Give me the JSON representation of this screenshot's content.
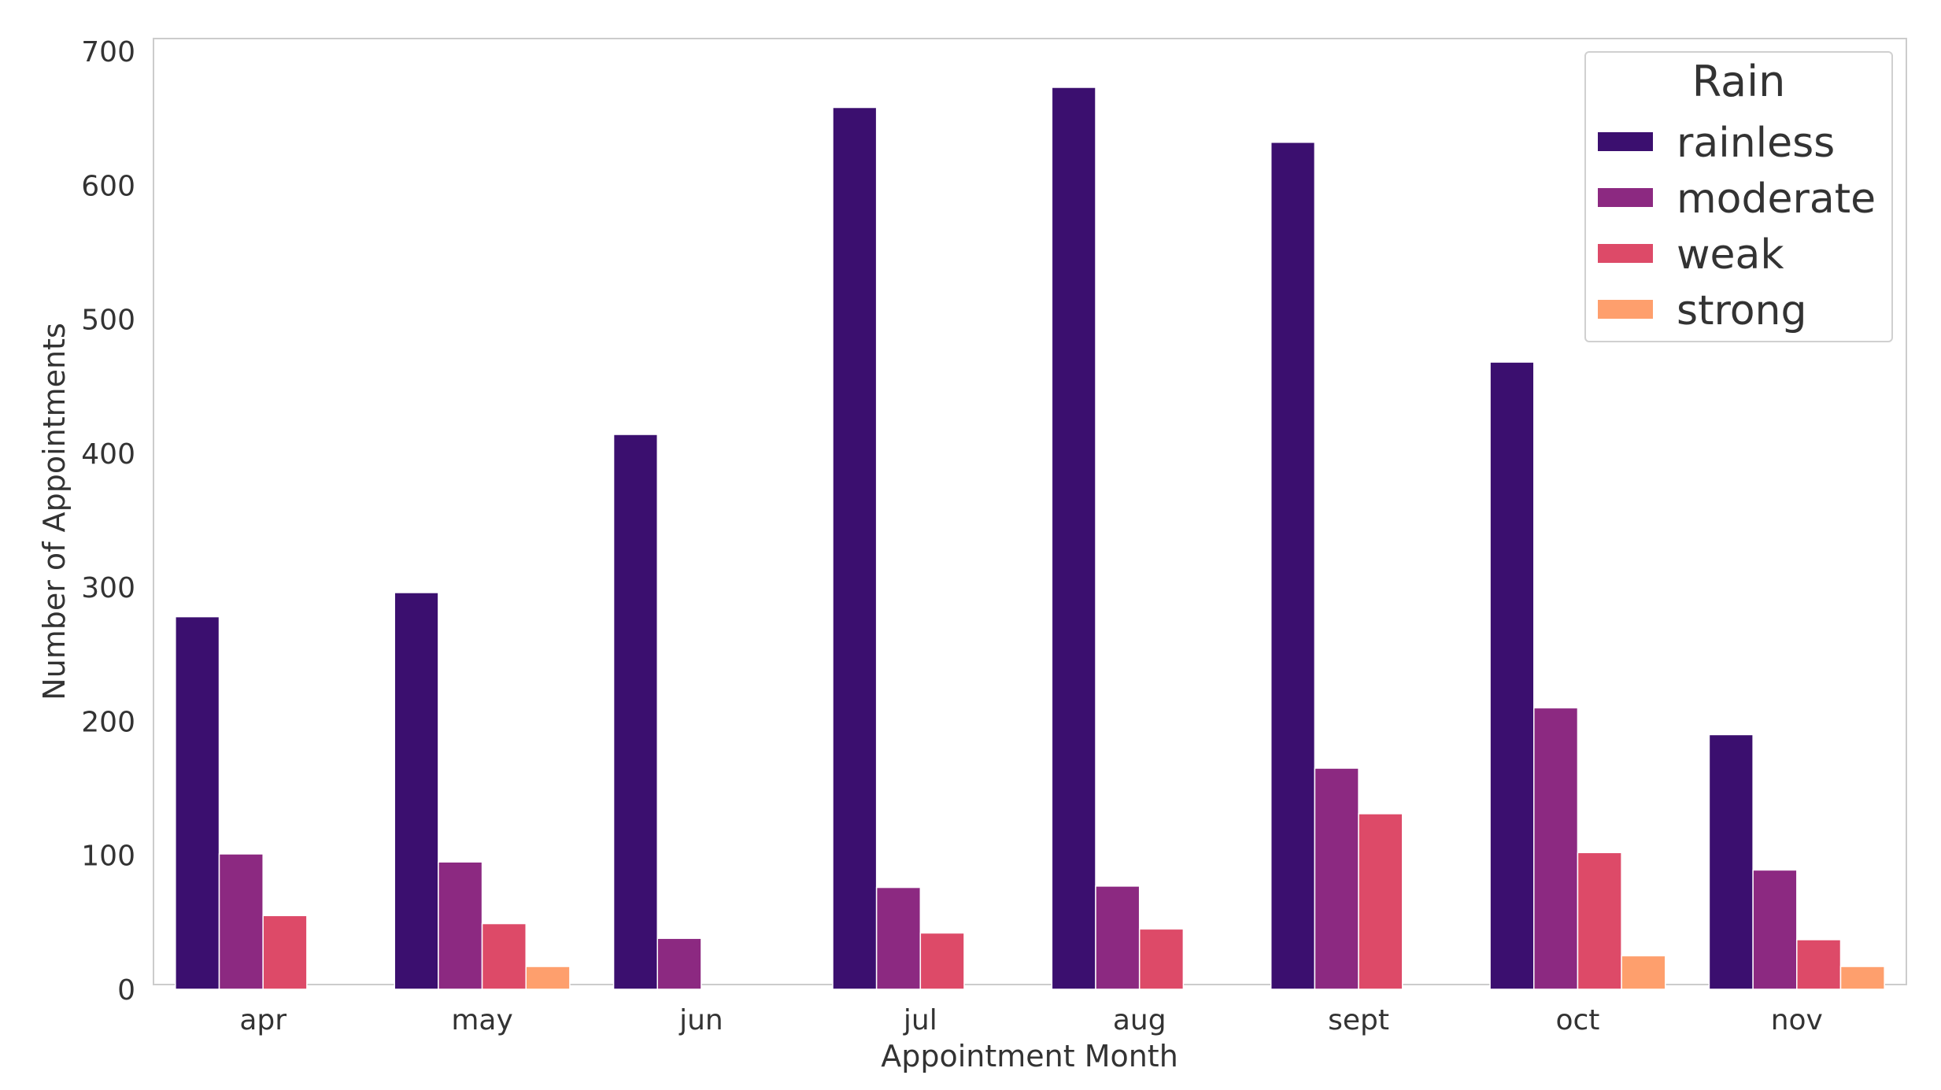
{
  "chart_data": {
    "type": "bar",
    "title": "",
    "xlabel": "Appointment Month",
    "ylabel": "Number of Appointments",
    "categories": [
      "apr",
      "may",
      "jun",
      "jul",
      "aug",
      "sept",
      "oct",
      "nov"
    ],
    "ylim": [
      0,
      700
    ],
    "yticks": [
      "0",
      "100",
      "200",
      "300",
      "400",
      "500",
      "600",
      "700"
    ],
    "grid": false,
    "legend": {
      "title": "Rain",
      "placement": "top-right"
    },
    "series": [
      {
        "name": "rainless",
        "color": "#3b0f6f",
        "values": [
          278,
          296,
          414,
          658,
          673,
          632,
          468,
          190
        ]
      },
      {
        "name": "moderate",
        "color": "#8c2981",
        "values": [
          101,
          95,
          38,
          76,
          77,
          165,
          210,
          89
        ]
      },
      {
        "name": "weak",
        "color": "#dd4a68",
        "values": [
          55,
          49,
          0,
          42,
          45,
          131,
          102,
          37
        ]
      },
      {
        "name": "strong",
        "color": "#fe9f6d",
        "values": [
          0,
          17,
          0,
          0,
          0,
          0,
          25,
          17
        ]
      }
    ]
  }
}
